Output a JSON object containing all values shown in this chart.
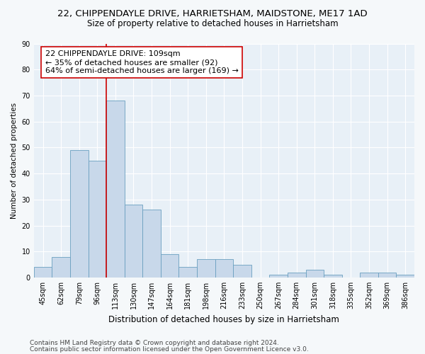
{
  "title": "22, CHIPPENDAYLE DRIVE, HARRIETSHAM, MAIDSTONE, ME17 1AD",
  "subtitle": "Size of property relative to detached houses in Harrietsham",
  "xlabel": "Distribution of detached houses by size in Harrietsham",
  "ylabel": "Number of detached properties",
  "bar_color": "#c8d8ea",
  "bar_edge_color": "#6a9fc0",
  "categories": [
    "45sqm",
    "62sqm",
    "79sqm",
    "96sqm",
    "113sqm",
    "130sqm",
    "147sqm",
    "164sqm",
    "181sqm",
    "198sqm",
    "216sqm",
    "233sqm",
    "250sqm",
    "267sqm",
    "284sqm",
    "301sqm",
    "318sqm",
    "335sqm",
    "352sqm",
    "369sqm",
    "386sqm"
  ],
  "values": [
    4,
    8,
    49,
    45,
    68,
    28,
    26,
    9,
    4,
    7,
    7,
    5,
    0,
    1,
    2,
    3,
    1,
    0,
    2,
    2,
    1
  ],
  "vline_x": 3.5,
  "vline_color": "#cc0000",
  "annotation_line1": "22 CHIPPENDAYLE DRIVE: 109sqm",
  "annotation_line2": "← 35% of detached houses are smaller (92)",
  "annotation_line3": "64% of semi-detached houses are larger (169) →",
  "annotation_box_color": "#ffffff",
  "annotation_box_edge": "#cc0000",
  "ylim": [
    0,
    90
  ],
  "yticks": [
    0,
    10,
    20,
    30,
    40,
    50,
    60,
    70,
    80,
    90
  ],
  "footnote1": "Contains HM Land Registry data © Crown copyright and database right 2024.",
  "footnote2": "Contains public sector information licensed under the Open Government Licence v3.0.",
  "bg_color": "#f5f8fa",
  "plot_bg_color": "#e8f0f7",
  "title_fontsize": 9.5,
  "subtitle_fontsize": 8.5,
  "xlabel_fontsize": 8.5,
  "ylabel_fontsize": 7.5,
  "tick_fontsize": 7,
  "annot_fontsize": 8,
  "footnote_fontsize": 6.5
}
